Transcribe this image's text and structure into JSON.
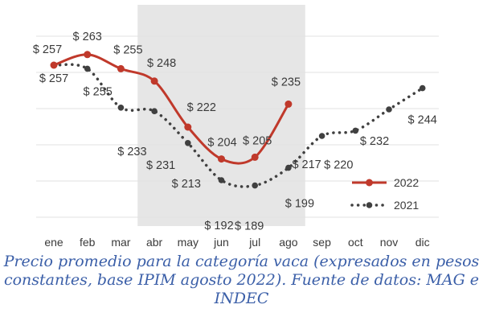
{
  "chart_data": {
    "type": "line",
    "categories": [
      "ene",
      "feb",
      "mar",
      "abr",
      "may",
      "jun",
      "jul",
      "ago",
      "sep",
      "oct",
      "nov",
      "dic"
    ],
    "series": [
      {
        "name": "2022",
        "values": [
          257,
          263,
          255,
          248,
          222,
          204,
          205,
          235,
          null,
          null,
          null,
          null
        ],
        "labels": [
          "$ 257",
          "$ 263",
          "$ 255",
          "$ 248",
          "$ 222",
          "$ 204",
          "$ 205",
          "$ 235",
          "",
          "",
          "",
          ""
        ],
        "color": "#c0392b",
        "style": "solid"
      },
      {
        "name": "2021",
        "values": [
          257,
          255,
          233,
          231,
          213,
          192,
          189,
          199,
          217,
          220,
          232,
          244
        ],
        "labels": [
          "$ 257",
          "$ 255",
          "$ 233",
          "$ 231",
          "$ 213",
          "$ 192",
          "$ 189",
          "$ 199",
          "$ 217",
          "$ 220",
          "$ 232",
          "$ 244"
        ],
        "color": "#404040",
        "style": "dotted"
      }
    ],
    "highlight_range": [
      "abr",
      "ago"
    ],
    "highlight_color": "#e6e6e6",
    "grid": "horizontal",
    "legend_placement": "bottom-right"
  },
  "caption": "Precio promedio para la categoría vaca (expresados en pesos constantes, base IPIM agosto 2022). Fuente de datos: MAG e INDEC"
}
